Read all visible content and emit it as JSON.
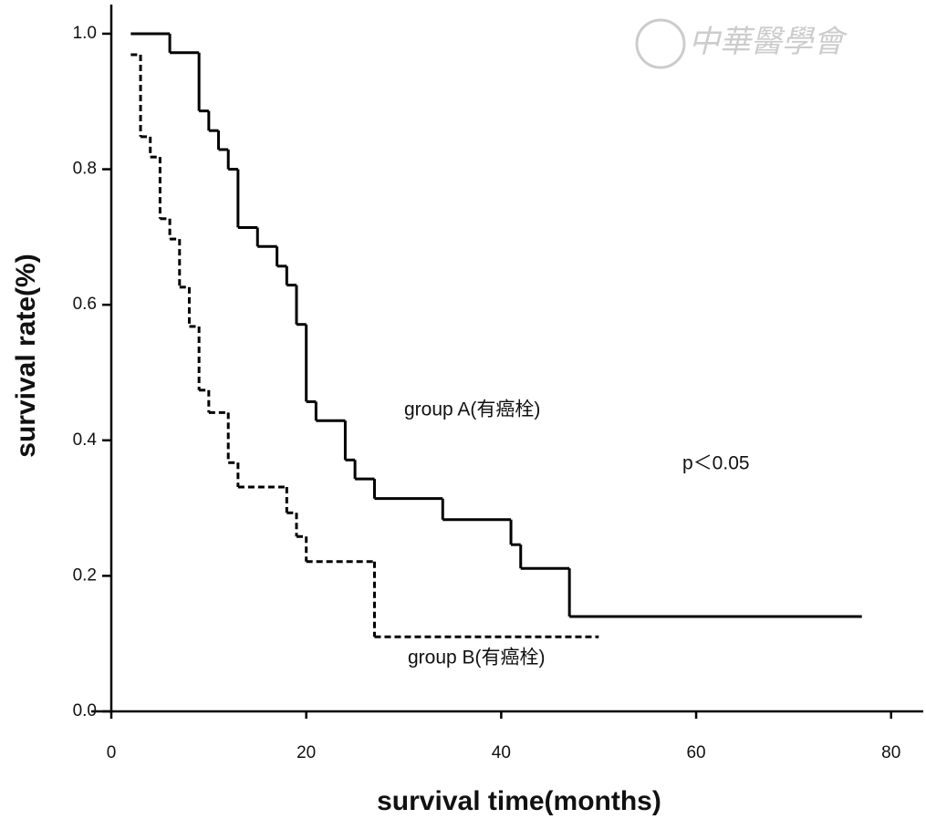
{
  "chart_data": {
    "type": "step",
    "xlabel": "survival time(months)",
    "ylabel": "survival rate(%)",
    "watermark": "中華醫學會",
    "annotations": [
      "group A(有癌栓)",
      "group B(有癌栓)",
      "p＜0.05"
    ],
    "series": [
      {
        "name": "group A",
        "color": "#000000",
        "dash": "solid",
        "x": [
          2,
          6,
          9,
          10,
          11,
          12,
          13,
          15,
          17,
          18,
          19,
          20,
          21,
          24,
          25,
          27,
          34,
          41,
          42,
          47,
          77
        ],
        "values": [
          1.0,
          0.972,
          0.886,
          0.857,
          0.829,
          0.8,
          0.714,
          0.686,
          0.657,
          0.629,
          0.571,
          0.457,
          0.429,
          0.371,
          0.343,
          0.314,
          0.283,
          0.246,
          0.211,
          0.14,
          0.14
        ]
      },
      {
        "name": "group B",
        "color": "#000000",
        "dash": "dashed",
        "x": [
          2,
          3,
          4,
          5,
          6,
          7,
          8,
          9,
          10,
          12,
          13,
          18,
          19,
          20,
          27,
          50
        ],
        "values": [
          0.969,
          0.848,
          0.818,
          0.727,
          0.697,
          0.626,
          0.568,
          0.474,
          0.441,
          0.367,
          0.331,
          0.293,
          0.258,
          0.221,
          0.11,
          0.11
        ]
      }
    ],
    "xlim": [
      0,
      83.3
    ],
    "xticks": [
      0,
      20,
      40,
      60,
      80
    ],
    "ylim": [
      0,
      1.043
    ],
    "yticks": [
      {
        "value": 0,
        "label": "0.0"
      },
      0.2,
      0.4,
      0.6,
      0.8,
      {
        "value": 1,
        "label": "1.0"
      }
    ]
  }
}
